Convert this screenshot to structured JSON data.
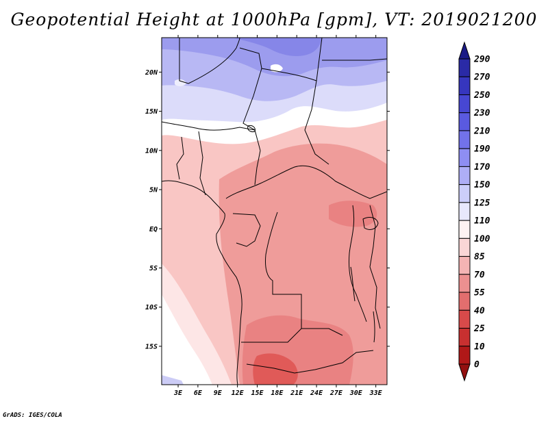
{
  "title": "Geopotential Height at 1000hPa [gpm], VT: 2019021200",
  "credit": "GrADS: IGES/COLA",
  "map": {
    "lat_ticks": [
      {
        "lat": 20,
        "label": "20N"
      },
      {
        "lat": 15,
        "label": "15N"
      },
      {
        "lat": 10,
        "label": "10N"
      },
      {
        "lat": 5,
        "label": "5N"
      },
      {
        "lat": 0,
        "label": "EQ"
      },
      {
        "lat": -5,
        "label": "5S"
      },
      {
        "lat": -10,
        "label": "10S"
      },
      {
        "lat": -15,
        "label": "15S"
      }
    ],
    "lon_ticks": [
      {
        "lon": 3,
        "label": "3E"
      },
      {
        "lon": 6,
        "label": "6E"
      },
      {
        "lon": 9,
        "label": "9E"
      },
      {
        "lon": 12,
        "label": "12E"
      },
      {
        "lon": 15,
        "label": "15E"
      },
      {
        "lon": 18,
        "label": "18E"
      },
      {
        "lon": 21,
        "label": "21E"
      },
      {
        "lon": 24,
        "label": "24E"
      },
      {
        "lon": 27,
        "label": "27E"
      },
      {
        "lon": 30,
        "label": "30E"
      },
      {
        "lon": 33,
        "label": "33E"
      }
    ],
    "lon_range": [
      0.5,
      34.7
    ],
    "lat_range": [
      -19.9,
      24.4
    ]
  },
  "colorbar": {
    "levels": [
      "290",
      "270",
      "250",
      "230",
      "210",
      "190",
      "170",
      "150",
      "125",
      "110",
      "100",
      "85",
      "70",
      "55",
      "40",
      "25",
      "10",
      "0"
    ],
    "colors": [
      "#1b1b86",
      "#2a2aa6",
      "#3636be",
      "#4747d2",
      "#5a5ae0",
      "#7272ea",
      "#8e8ef2",
      "#aeaef6",
      "#cccefa",
      "#e8e8fc",
      "#fdf2f2",
      "#fad6d6",
      "#f4b4b4",
      "#ec9090",
      "#e26e6e",
      "#d84a4a",
      "#c83030",
      "#b01818",
      "#931010"
    ]
  }
}
